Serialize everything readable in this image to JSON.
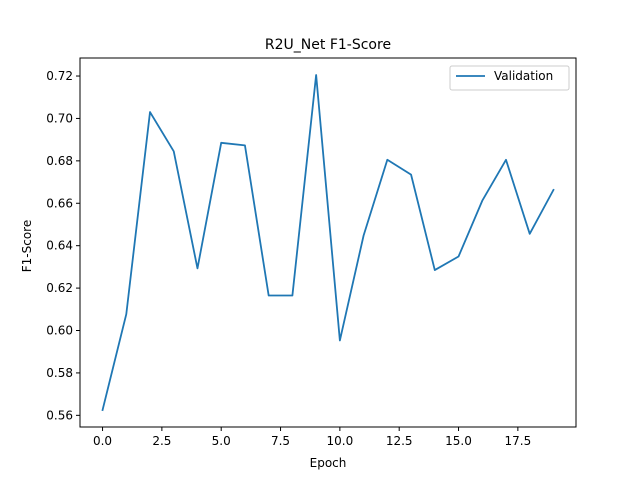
{
  "chart_data": {
    "type": "line",
    "title": "R2U_Net F1-Score",
    "xlabel": "Epoch",
    "ylabel": "F1-Score",
    "xlim": [
      -0.95,
      19.95
    ],
    "ylim": [
      0.5545,
      0.7285
    ],
    "x_ticks": [
      0.0,
      2.5,
      5.0,
      7.5,
      10.0,
      12.5,
      15.0,
      17.5
    ],
    "x_tick_labels": [
      "0.0",
      "2.5",
      "5.0",
      "7.5",
      "10.0",
      "12.5",
      "15.0",
      "17.5"
    ],
    "y_ticks": [
      0.56,
      0.58,
      0.6,
      0.62,
      0.64,
      0.66,
      0.68,
      0.7,
      0.72
    ],
    "y_tick_labels": [
      "0.56",
      "0.58",
      "0.60",
      "0.62",
      "0.64",
      "0.66",
      "0.68",
      "0.70",
      "0.72"
    ],
    "grid": false,
    "legend_position": "upper right",
    "x": [
      0,
      1,
      2,
      3,
      4,
      5,
      6,
      7,
      8,
      9,
      10,
      11,
      12,
      13,
      14,
      15,
      16,
      17,
      18,
      19
    ],
    "series": [
      {
        "name": "Validation",
        "color": "#1f77b4",
        "values": [
          0.5625,
          0.6077,
          0.703,
          0.6845,
          0.6293,
          0.6885,
          0.6873,
          0.6165,
          0.6165,
          0.7205,
          0.5953,
          0.6448,
          0.6805,
          0.6735,
          0.6285,
          0.6349,
          0.6612,
          0.6805,
          0.6456,
          0.6663
        ]
      }
    ]
  }
}
